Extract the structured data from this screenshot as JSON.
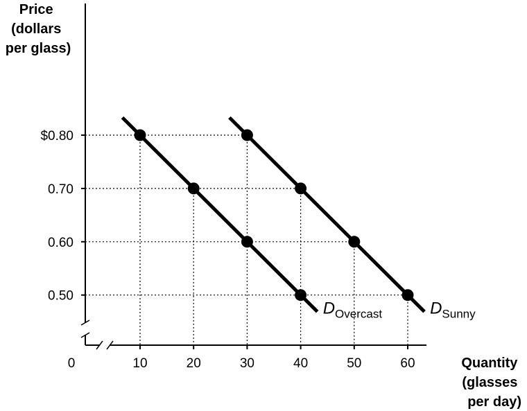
{
  "chart_data": {
    "type": "line",
    "ylabel_lines": [
      "Price",
      "(dollars",
      "per glass)"
    ],
    "xlabel_lines": [
      "Quantity",
      "(glasses",
      "per day)"
    ],
    "origin_label": "0",
    "x_ticks": [
      10,
      20,
      30,
      40,
      50,
      60
    ],
    "x_tick_labels": [
      "10",
      "20",
      "30",
      "40",
      "50",
      "60"
    ],
    "y_ticks": [
      0.8,
      0.7,
      0.6,
      0.5
    ],
    "y_tick_labels": [
      "$0.80",
      "0.70",
      "0.60",
      "0.50"
    ],
    "axis_breaks": true,
    "series": [
      {
        "name_main": "D",
        "name_sub": "Overcast",
        "points": [
          {
            "x": 10,
            "y": 0.8
          },
          {
            "x": 20,
            "y": 0.7
          },
          {
            "x": 30,
            "y": 0.6
          },
          {
            "x": 40,
            "y": 0.5
          }
        ]
      },
      {
        "name_main": "D",
        "name_sub": "Sunny",
        "points": [
          {
            "x": 30,
            "y": 0.8
          },
          {
            "x": 40,
            "y": 0.7
          },
          {
            "x": 50,
            "y": 0.6
          },
          {
            "x": 60,
            "y": 0.5
          }
        ]
      }
    ],
    "colors": {
      "line": "#000000",
      "grid": "#000000"
    }
  }
}
